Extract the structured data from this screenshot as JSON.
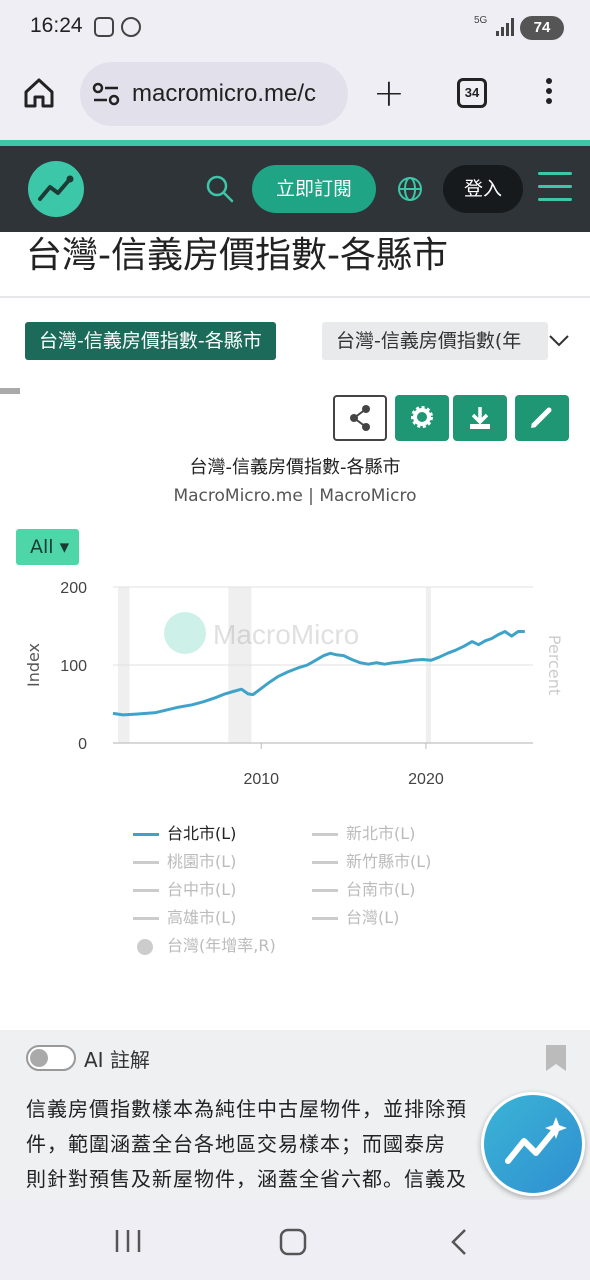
{
  "status_bar": {
    "time": "16:24",
    "network": "5G",
    "battery": "74"
  },
  "browser": {
    "url": "macromicro.me/c",
    "tab_count": "34"
  },
  "site_header": {
    "subscribe_label": "立即訂閱",
    "login_label": "登入"
  },
  "page": {
    "title": "台灣-信義房價指數-各縣市",
    "tabs": [
      {
        "label": "台灣-信義房價指數-各縣市",
        "active": true
      },
      {
        "label": "台灣-信義房價指數(年",
        "active": false
      }
    ]
  },
  "chart_header": {
    "title": "台灣-信義房價指數-各縣市",
    "subtitle": "MacroMicro.me | MacroMicro",
    "range_button": "All ▾"
  },
  "chart_data": {
    "type": "line",
    "xlabel": "",
    "ylabel": "Index",
    "y2label": "Percent",
    "ylim": [
      0,
      200
    ],
    "yticks": [
      "200",
      "100",
      "0"
    ],
    "xlim": [
      2001,
      2026.5
    ],
    "xticks": [
      "2010",
      "2020"
    ],
    "watermark": "MacroMicro",
    "shaded_periods": [
      [
        2001.3,
        2002.0
      ],
      [
        2008.0,
        2009.4
      ],
      [
        2020.0,
        2020.3
      ]
    ],
    "grid": true,
    "series": [
      {
        "name": "台北市(L)",
        "color": "#3fa3c9",
        "points": [
          [
            2001.0,
            38
          ],
          [
            2001.6,
            36
          ],
          [
            2002.4,
            37
          ],
          [
            2003.0,
            38
          ],
          [
            2003.6,
            39
          ],
          [
            2004.2,
            42
          ],
          [
            2005.0,
            46
          ],
          [
            2005.8,
            49
          ],
          [
            2006.5,
            53
          ],
          [
            2007.2,
            58
          ],
          [
            2007.8,
            63
          ],
          [
            2008.3,
            66
          ],
          [
            2008.8,
            69
          ],
          [
            2009.2,
            63
          ],
          [
            2009.5,
            62
          ],
          [
            2010.0,
            70
          ],
          [
            2010.5,
            78
          ],
          [
            2011.0,
            85
          ],
          [
            2011.6,
            91
          ],
          [
            2012.2,
            96
          ],
          [
            2012.8,
            100
          ],
          [
            2013.3,
            106
          ],
          [
            2013.8,
            112
          ],
          [
            2014.2,
            115
          ],
          [
            2014.6,
            113
          ],
          [
            2015.0,
            112
          ],
          [
            2015.5,
            107
          ],
          [
            2016.0,
            103
          ],
          [
            2016.5,
            101
          ],
          [
            2017.0,
            103
          ],
          [
            2017.5,
            101
          ],
          [
            2018.0,
            103
          ],
          [
            2018.6,
            104
          ],
          [
            2019.2,
            106
          ],
          [
            2019.8,
            107
          ],
          [
            2020.3,
            106
          ],
          [
            2020.8,
            110
          ],
          [
            2021.3,
            115
          ],
          [
            2021.8,
            119
          ],
          [
            2022.3,
            124
          ],
          [
            2022.8,
            130
          ],
          [
            2023.2,
            126
          ],
          [
            2023.6,
            131
          ],
          [
            2024.0,
            134
          ],
          [
            2024.4,
            139
          ],
          [
            2024.8,
            143
          ],
          [
            2025.2,
            137
          ],
          [
            2025.6,
            143
          ],
          [
            2026.0,
            143
          ]
        ]
      }
    ],
    "legend": [
      {
        "label": "台北市(L)",
        "active": true
      },
      {
        "label": "新北市(L)",
        "active": false
      },
      {
        "label": "桃園市(L)",
        "active": false
      },
      {
        "label": "新竹縣市(L)",
        "active": false
      },
      {
        "label": "台中市(L)",
        "active": false
      },
      {
        "label": "台南市(L)",
        "active": false
      },
      {
        "label": "高雄市(L)",
        "active": false
      },
      {
        "label": "台灣(L)",
        "active": false
      },
      {
        "label": "台灣(年增率,R)",
        "active": false,
        "marker": "dot"
      }
    ]
  },
  "ai_section": {
    "label": "AI 註解",
    "lines": [
      "信義房價指數樣本為純住中古屋物件，並排除預",
      "件，範圍涵蓋全台各地區交易樣本；而國泰房",
      "則針對預售及新屋物件，涵蓋全省六都。信義及"
    ]
  },
  "colors": {
    "brand": "#3cc7a8",
    "header_bg": "#2f3439",
    "tab_active": "#1c6b5a",
    "tool_button": "#1f9775",
    "series_line": "#3fa3c9"
  }
}
